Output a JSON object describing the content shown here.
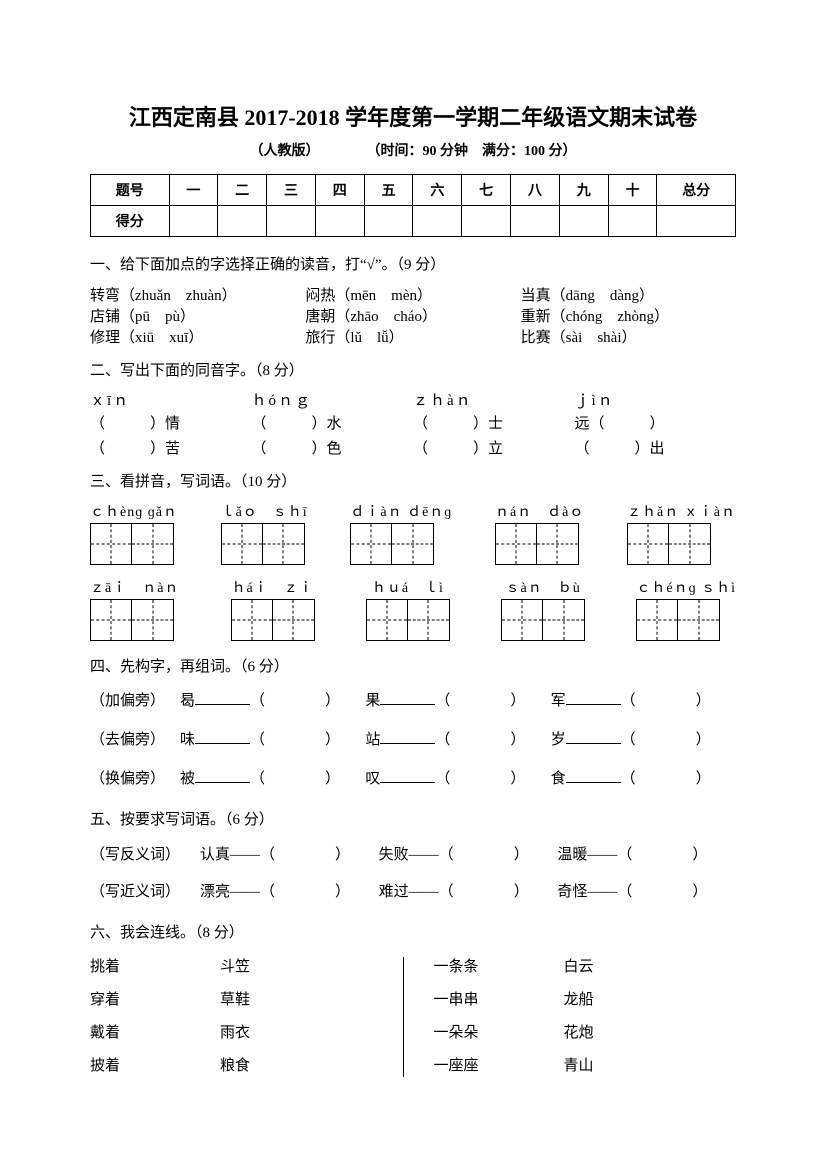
{
  "title": "江西定南县 2017-2018 学年度第一学期二年级语文期末试卷",
  "subtitle_a": "（人教版）",
  "subtitle_b": "（时间：90 分钟　满分：100 分）",
  "score_table": {
    "header": [
      "题号",
      "一",
      "二",
      "三",
      "四",
      "五",
      "六",
      "七",
      "八",
      "九",
      "十",
      "总分"
    ],
    "row_label": "得分"
  },
  "q1": {
    "heading": "一、给下面加点的字选择正确的读音，打“√”。（9 分）",
    "rows": [
      {
        "a": "转弯（zhuǎn　zhuàn）",
        "b": "闷热（mēn　mèn）",
        "c": "当真（dāng　dàng）"
      },
      {
        "a": "店铺（pū　pù）",
        "b": "唐朝（zhāo　cháo）",
        "c": "重新（chóng　zhòng）"
      },
      {
        "a": "修理（xiū　xuī）",
        "b": "旅行（lǔ　lǚ）",
        "c": "比赛（sài　shài）"
      }
    ]
  },
  "q2": {
    "heading": "二、写出下面的同音字。（8 分）",
    "pinyin": [
      "ｘīｎ",
      "ｈóｎｇ",
      "ｚｈàｎ",
      "ｊìｎ"
    ],
    "row1": [
      "（　　　）情",
      "（　　　）水",
      "（　　　）士",
      "远（　　　）"
    ],
    "row2": [
      "（　　　）苦",
      "（　　　）色",
      "（　　　）立",
      "（　　　）出"
    ]
  },
  "q3": {
    "heading": "三、看拼音，写词语。（10 分）",
    "line1": [
      "ｃｈènɡ ɡǎｎ",
      "ｌǎｏ　ｓｈī",
      "ｄｉàｎ ｄēｎɡ",
      "ｎáｎ　ｄàｏ",
      "ｚｈǎｎ ｘｉàｎ"
    ],
    "line2": [
      "ｚāｉ　ｎàｎ",
      "ｈáｉ　ｚｉ",
      "ｈｕá　ｌì",
      "ｓàｎ　ｂù",
      "ｃｈéｎɡ ｓｈì"
    ]
  },
  "q4": {
    "heading": "四、先构字，再组词。（6 分）",
    "rows": [
      {
        "lbl": "（加偏旁）",
        "w": [
          "曷",
          "果",
          "军"
        ]
      },
      {
        "lbl": "（去偏旁）",
        "w": [
          "味",
          "站",
          "岁"
        ]
      },
      {
        "lbl": "（换偏旁）",
        "w": [
          "被",
          "叹",
          "食"
        ]
      }
    ]
  },
  "q5": {
    "heading": "五、按要求写词语。（6 分）",
    "rows": [
      {
        "lbl": "（写反义词）",
        "w": [
          "认真——（",
          "失败——（",
          "温暖——（"
        ]
      },
      {
        "lbl": "（写近义词）",
        "w": [
          "漂亮——（",
          "难过——（",
          "奇怪——（"
        ]
      }
    ]
  },
  "q6": {
    "heading": "六、我会连线。（8 分）",
    "left": [
      [
        "挑着",
        "斗笠"
      ],
      [
        "穿着",
        "草鞋"
      ],
      [
        "戴着",
        "雨衣"
      ],
      [
        "披着",
        "粮食"
      ]
    ],
    "right": [
      [
        "一条条",
        "白云"
      ],
      [
        "一串串",
        "龙船"
      ],
      [
        "一朵朵",
        "花炮"
      ],
      [
        "一座座",
        "青山"
      ]
    ]
  }
}
